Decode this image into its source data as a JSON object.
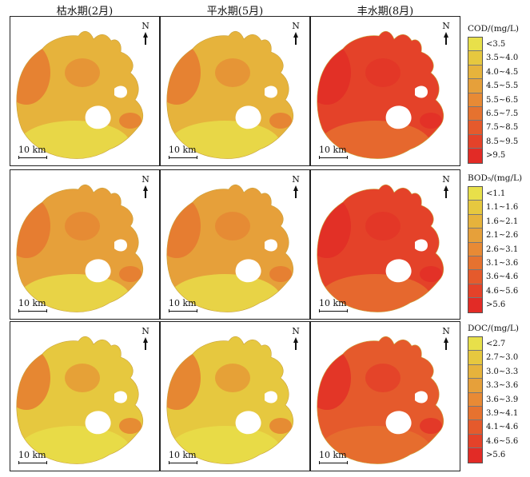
{
  "columns": [
    "枯水期(2月)",
    "平水期(5月)",
    "丰水期(8月)"
  ],
  "north_label": "N",
  "scale_label": "10 km",
  "legends": [
    {
      "title": "COD/(mg/L)",
      "classes": [
        {
          "label": "<3.5",
          "color": "#e8e04a"
        },
        {
          "label": "3.5~4.0",
          "color": "#e6c83f"
        },
        {
          "label": "4.0~4.5",
          "color": "#e6b33c"
        },
        {
          "label": "4.5~5.5",
          "color": "#e6a03a"
        },
        {
          "label": "5.5~6.5",
          "color": "#e88a35"
        },
        {
          "label": "6.5~7.5",
          "color": "#e6722f"
        },
        {
          "label": "7.5~8.5",
          "color": "#e55a2c"
        },
        {
          "label": "8.5~9.5",
          "color": "#e44229"
        },
        {
          "label": ">9.5",
          "color": "#e22b26"
        }
      ]
    },
    {
      "title": "BOD₅/(mg/L)",
      "classes": [
        {
          "label": "<1.1",
          "color": "#e8e04a"
        },
        {
          "label": "1.1~1.6",
          "color": "#e6c83f"
        },
        {
          "label": "1.6~2.1",
          "color": "#e6b33c"
        },
        {
          "label": "2.1~2.6",
          "color": "#e6a03a"
        },
        {
          "label": "2.6~3.1",
          "color": "#e88a35"
        },
        {
          "label": "3.1~3.6",
          "color": "#e6722f"
        },
        {
          "label": "3.6~4.6",
          "color": "#e55a2c"
        },
        {
          "label": "4.6~5.6",
          "color": "#e44229"
        },
        {
          "label": ">5.6",
          "color": "#e22b26"
        }
      ]
    },
    {
      "title": "DOC/(mg/L)",
      "classes": [
        {
          "label": "<2.7",
          "color": "#e8e04a"
        },
        {
          "label": "2.7~3.0",
          "color": "#e6c83f"
        },
        {
          "label": "3.0~3.3",
          "color": "#e6b33c"
        },
        {
          "label": "3.3~3.6",
          "color": "#e6a03a"
        },
        {
          "label": "3.6~3.9",
          "color": "#e88a35"
        },
        {
          "label": "3.9~4.1",
          "color": "#e6722f"
        },
        {
          "label": "4.1~4.6",
          "color": "#e55a2c"
        },
        {
          "label": "4.6~5.6",
          "color": "#e44229"
        },
        {
          "label": ">5.6",
          "color": "#e22b26"
        }
      ]
    }
  ],
  "panel_colors": [
    [
      "#e6b33c",
      "#e6b33c",
      "#e44229"
    ],
    [
      "#e6a03a",
      "#e6a03a",
      "#e44229"
    ],
    [
      "#e6c83f",
      "#e6c83f",
      "#e55a2c"
    ]
  ]
}
